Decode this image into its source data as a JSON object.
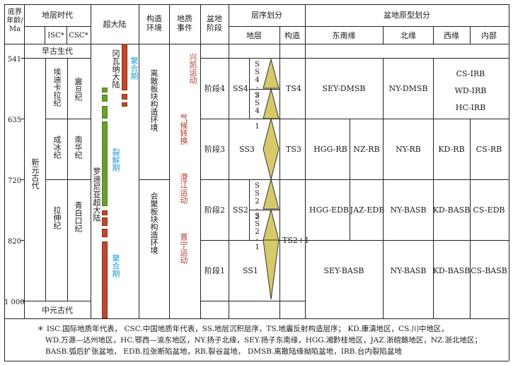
{
  "header": {
    "base_age": "底界\n年龄/\nMa",
    "strat_age": "地层时代",
    "isc": "ISC*",
    "csc": "CSC*",
    "supercontinent": "超大陆",
    "tectonic_env": "构造\n环境",
    "geo_events": "地质\n事件",
    "basin_stage": "盆地\n阶段",
    "sequence_division": "层序划分",
    "stratum": "地层",
    "structure": "构造",
    "proto_basin": "盆地原型划分",
    "southeast": "东南缘",
    "north": "北缘",
    "west": "西缘",
    "interior": "内部"
  },
  "ages": [
    "541",
    "635",
    "720",
    "820",
    "1 000"
  ],
  "eras": {
    "early_paleozoic": "早古生代",
    "neoproterozoic": "新元古代",
    "mesoproterozoic": "中元古代"
  },
  "periods_isc": [
    "埃迪卡拉纪",
    "成冰纪",
    "拉伸纪"
  ],
  "periods_csc": [
    "震旦纪",
    "南华纪",
    "青白口纪"
  ],
  "supercontinent": {
    "gondwana": "冈瓦纳大陆",
    "rodinia": "罗迪尼亚超大陆",
    "assembly_1": "聚合期",
    "breakup": "裂解期",
    "assembly_2": "聚合期"
  },
  "tectonic_env": {
    "divergent": "离散板块构造环境",
    "convergent": "会聚板块构造环境"
  },
  "events": [
    "兴凯运动",
    "气候转换",
    "澄江运动",
    "晋宁运动"
  ],
  "stages": [
    "阶段4",
    "阶段3",
    "阶段2",
    "阶段1"
  ],
  "sequences": {
    "ss4": "SS4",
    "ss4_2": "SS4-2",
    "ss4_1": "SS4-1",
    "ss3": "SS3",
    "ss2": "SS2",
    "ss2_2": "SS2-2",
    "ss2_1": "SS2-1",
    "ss1": "SS1"
  },
  "tectonic_sequences": [
    "TS4",
    "TS3",
    "TS2+1"
  ],
  "basins": {
    "stage4": {
      "southeast": "SEY-DMSB",
      "north": "NY-DMSB",
      "inner": [
        "CS-IRB",
        "WD-IRB",
        "HC-IRB"
      ]
    },
    "stage3": {
      "hgg": "HGG-RB",
      "nz": "NZ-RB",
      "north": "NY-RB",
      "west": "KD-RB",
      "inner": "CS-RB"
    },
    "stage2": {
      "hgg": "HGG-EDB",
      "jaz": "JAZ-EDB",
      "north": "NY-BASB",
      "west": "KD-BASB",
      "inner": "CS-EDB"
    },
    "stage1": {
      "southeast": "SEY-BASB",
      "north": "NY-BASB",
      "west": "KD-BASB",
      "inner": "CS-BASB"
    }
  },
  "notes": [
    "＊ ISC.国际地质年代表，  CSC.中国地质年代表，SS.地层沉积层序，TS.地震反射构造层序；  KD.康滇地区，CS.川中地区，",
    "WD.万源—达州地区，HC.鄂西—渝东地区，NY.扬子北缘，SEY.扬子东南缘，HGG.湘黔桂地区，JAZ.浙皖赣地区，NZ.浙北地区；",
    "BASB.弧后扩张盆地，   EDB.拉张断陷盆地，RB.裂谷盆地，  DMSB.离散陆缘拗陷盆地，IRB.台内裂陷盆地"
  ],
  "colors": {
    "green_bar": "#6a9f2e",
    "brown_bar": "#c0472e",
    "triangle": "#d6c96a",
    "event_text": "#b03a2e",
    "phase_text": "#1f9bd7"
  }
}
